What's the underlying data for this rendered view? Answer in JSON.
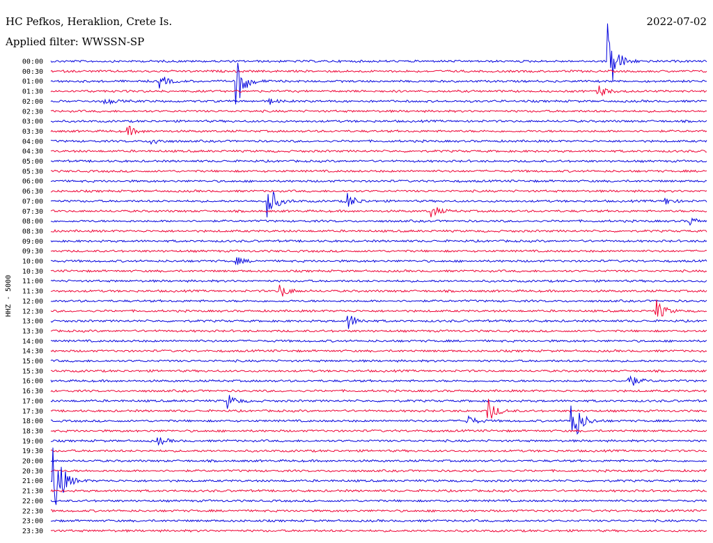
{
  "header": {
    "station": "HC Pefkos, Heraklion, Crete Is.",
    "filter": "Applied filter: WWSSN-SP",
    "date": "2022-07-02"
  },
  "chart_data": {
    "type": "line",
    "title": "HC Pefkos, Heraklion, Crete Is.",
    "subtitle": "Applied filter: WWSSN-SP",
    "date": "2022-07-02",
    "ylabel": "HHZ - 5000",
    "xlabel": "",
    "row_minutes": 30,
    "row_labels": [
      "00:00",
      "00:30",
      "01:00",
      "01:30",
      "02:00",
      "02:30",
      "03:00",
      "03:30",
      "04:00",
      "04:30",
      "05:00",
      "05:30",
      "06:00",
      "06:30",
      "07:00",
      "07:30",
      "08:00",
      "08:30",
      "09:00",
      "09:30",
      "10:00",
      "10:30",
      "11:00",
      "11:30",
      "12:00",
      "12:30",
      "13:00",
      "13:30",
      "14:00",
      "14:30",
      "15:00",
      "15:30",
      "16:00",
      "16:30",
      "17:00",
      "17:30",
      "18:00",
      "18:30",
      "19:00",
      "19:30",
      "20:00",
      "20:30",
      "21:00",
      "21:30",
      "22:00",
      "22:30",
      "23:00",
      "23:30"
    ],
    "row_colors": [
      "#0000dd",
      "#ee0033"
    ],
    "events": [
      {
        "row": 0,
        "minute": 25.5,
        "amplitude": 55
      },
      {
        "row": 2,
        "minute": 5.0,
        "amplitude": 9
      },
      {
        "row": 2,
        "minute": 8.5,
        "amplitude": 38
      },
      {
        "row": 3,
        "minute": 25.0,
        "amplitude": 10
      },
      {
        "row": 4,
        "minute": 2.4,
        "amplitude": 6
      },
      {
        "row": 4,
        "minute": 10.0,
        "amplitude": 4
      },
      {
        "row": 7,
        "minute": 3.5,
        "amplitude": 8
      },
      {
        "row": 8,
        "minute": 4.6,
        "amplitude": 6
      },
      {
        "row": 14,
        "minute": 9.9,
        "amplitude": 30
      },
      {
        "row": 14,
        "minute": 13.5,
        "amplitude": 14
      },
      {
        "row": 14,
        "minute": 28.1,
        "amplitude": 5
      },
      {
        "row": 15,
        "minute": 17.4,
        "amplitude": 10
      },
      {
        "row": 16,
        "minute": 29.2,
        "amplitude": 6
      },
      {
        "row": 20,
        "minute": 8.5,
        "amplitude": 5
      },
      {
        "row": 23,
        "minute": 10.5,
        "amplitude": 10
      },
      {
        "row": 25,
        "minute": 27.7,
        "amplitude": 16
      },
      {
        "row": 26,
        "minute": 13.6,
        "amplitude": 12
      },
      {
        "row": 32,
        "minute": 26.4,
        "amplitude": 12
      },
      {
        "row": 34,
        "minute": 8.1,
        "amplitude": 10
      },
      {
        "row": 35,
        "minute": 20.0,
        "amplitude": 18
      },
      {
        "row": 36,
        "minute": 19.0,
        "amplitude": 10
      },
      {
        "row": 36,
        "minute": 23.8,
        "amplitude": 48
      },
      {
        "row": 38,
        "minute": 4.9,
        "amplitude": 6
      },
      {
        "row": 42,
        "minute": 0.1,
        "amplitude": 75
      }
    ]
  }
}
